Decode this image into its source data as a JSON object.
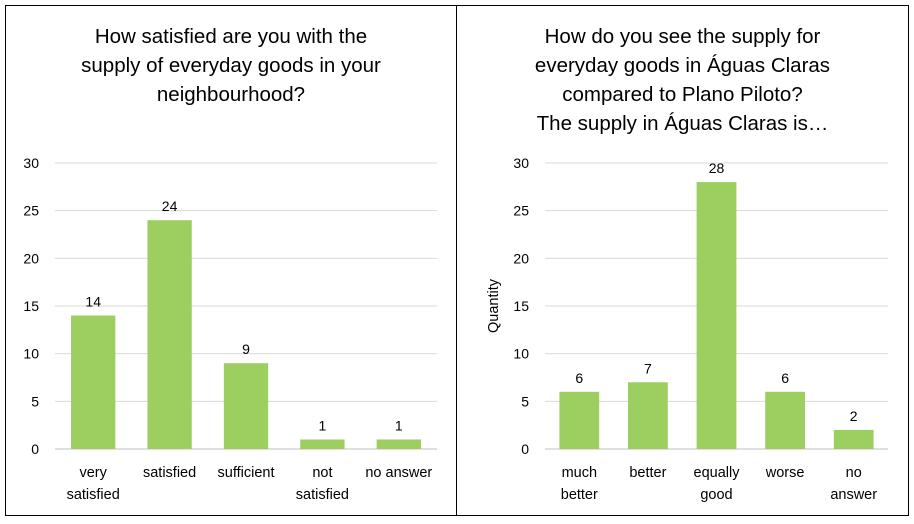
{
  "chart_data": [
    {
      "type": "bar",
      "title": "How satisfied are you with the\nsupply of everyday goods in your\nneighbourhood?",
      "categories": [
        [
          "very",
          "satisfied"
        ],
        [
          "satisfied"
        ],
        [
          "sufficient"
        ],
        [
          "not",
          "satisfied"
        ],
        [
          "no answer"
        ]
      ],
      "values": [
        14,
        24,
        9,
        1,
        1
      ],
      "ylabel": "",
      "ylim": [
        0,
        30
      ],
      "yticks": [
        0,
        5,
        10,
        15,
        20,
        25,
        30
      ],
      "grid": true,
      "bar_color": "#9ccf5f"
    },
    {
      "type": "bar",
      "title": "How do you see the supply for\neveryday goods in Águas Claras\ncompared to Plano Piloto?\nThe supply in Águas Claras is…",
      "categories": [
        [
          "much",
          "better"
        ],
        [
          "better"
        ],
        [
          "equally",
          "good"
        ],
        [
          "worse"
        ],
        [
          "no",
          "answer"
        ]
      ],
      "values": [
        6,
        7,
        28,
        6,
        2
      ],
      "ylabel": "Quantity",
      "ylim": [
        0,
        30
      ],
      "yticks": [
        0,
        5,
        10,
        15,
        20,
        25,
        30
      ],
      "grid": true,
      "bar_color": "#9ccf5f"
    }
  ]
}
